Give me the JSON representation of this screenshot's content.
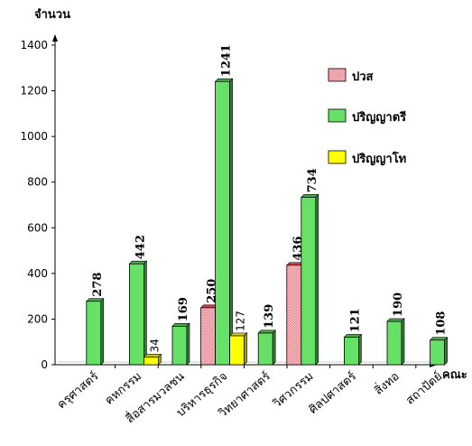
{
  "chart_data": {
    "type": "bar",
    "ylabel": "จำนวน",
    "xlabel": "คณะ",
    "ylim": [
      0,
      1400
    ],
    "yticks": [
      0,
      200,
      400,
      600,
      800,
      1000,
      1200,
      1400
    ],
    "categories": [
      "ครุศาสตร์",
      "คหกรรม",
      "สื่อสารมวลชน",
      "บริหารธุรกิจ",
      "วิทยาศาสตร์",
      "วิศวกรรม",
      "ศิลปศาสตร์",
      "สิ่งทอ",
      "สถาปัตย์"
    ],
    "series": [
      {
        "name": "ปวส",
        "color": "#f7b3b8",
        "values": [
          null,
          null,
          null,
          250,
          null,
          436,
          null,
          null,
          null
        ]
      },
      {
        "name": "ปริญญาตรี",
        "color": "#66e066",
        "values": [
          278,
          442,
          169,
          1241,
          139,
          734,
          121,
          190,
          108
        ]
      },
      {
        "name": "ปริญญาโท",
        "color": "#ffff00",
        "values": [
          null,
          34,
          null,
          127,
          null,
          null,
          null,
          null,
          null
        ]
      }
    ],
    "legend_position": "top-right",
    "grid": false
  }
}
